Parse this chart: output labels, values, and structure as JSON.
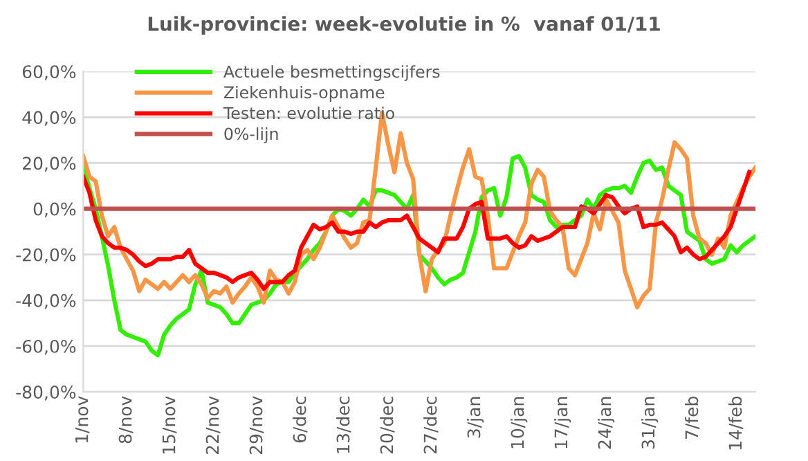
{
  "chart_data": {
    "type": "line",
    "title": "Luik-provincie: week-evolutie in %  vanaf 01/11",
    "categories": [
      "1/nov",
      null,
      null,
      null,
      null,
      null,
      null,
      "8/nov",
      null,
      null,
      null,
      null,
      null,
      null,
      "15/nov",
      null,
      null,
      null,
      null,
      null,
      null,
      "22/nov",
      null,
      null,
      null,
      null,
      null,
      null,
      "29/nov",
      null,
      null,
      null,
      null,
      null,
      null,
      "6/dec",
      null,
      null,
      null,
      null,
      null,
      null,
      "13/dec",
      null,
      null,
      null,
      null,
      null,
      null,
      "20/dec",
      null,
      null,
      null,
      null,
      null,
      null,
      "27/dec",
      null,
      null,
      null,
      null,
      null,
      null,
      "3/jan",
      null,
      null,
      null,
      null,
      null,
      null,
      "10/jan",
      null,
      null,
      null,
      null,
      null,
      null,
      "17/jan",
      null,
      null,
      null,
      null,
      null,
      null,
      "24/jan",
      null,
      null,
      null,
      null,
      null,
      null,
      "31/jan",
      null,
      null,
      null,
      null,
      null,
      null,
      "7/feb",
      null,
      null,
      null,
      null,
      null,
      null,
      "14/feb",
      null,
      null,
      null
    ],
    "ylim": [
      -80,
      60
    ],
    "yticks": [
      {
        "value": -80,
        "label": "-80,0%"
      },
      {
        "value": -60,
        "label": "-60,0%"
      },
      {
        "value": -40,
        "label": "-40,0%"
      },
      {
        "value": -20,
        "label": "-20,0%"
      },
      {
        "value": 0,
        "label": "0,0%"
      },
      {
        "value": 20,
        "label": "20,0%"
      },
      {
        "value": 40,
        "label": "40,0%"
      },
      {
        "value": 60,
        "label": "60,0%"
      }
    ],
    "grid": "y",
    "legend": "top left",
    "line_style": "solid",
    "marker": "none",
    "series": [
      {
        "name": "Actuele besmettingscijfers",
        "color": "#33ee00",
        "values": [
          19,
          9,
          0,
          -12,
          -25,
          -40,
          -53,
          -55,
          -56,
          -57,
          -58,
          -62,
          -64,
          -55,
          -51,
          -48,
          -46,
          -44,
          -33,
          -27,
          -41,
          -42,
          -43,
          -46,
          -50,
          -50,
          -46,
          -42,
          -41,
          -40,
          -37,
          -33,
          -32,
          -32,
          -28,
          -25,
          -22,
          -18,
          -15,
          -10,
          -3,
          0,
          -1,
          -3,
          0,
          4,
          1,
          8,
          8,
          7,
          6,
          3,
          0,
          6,
          -20,
          -23,
          -26,
          -30,
          -33,
          -31,
          -30,
          -28,
          -19,
          -10,
          5,
          8,
          9,
          -3,
          5,
          22,
          23,
          18,
          6,
          4,
          3,
          -5,
          -8,
          -7,
          -7,
          -5,
          -3,
          4,
          0,
          6,
          8,
          9,
          9,
          10,
          7,
          14,
          20,
          21,
          17,
          18,
          10,
          8,
          6,
          -10,
          -12,
          -14,
          -22,
          -24,
          -23,
          -22,
          -16,
          -19,
          -16,
          -14,
          -12
        ]
      },
      {
        "name": "Ziekenhuis-opname",
        "color": "#f79646",
        "values": [
          23,
          14,
          12,
          -3,
          -12,
          -8,
          -17,
          -22,
          -27,
          -36,
          -31,
          -33,
          -35,
          -32,
          -35,
          -32,
          -29,
          -32,
          -29,
          -33,
          -39,
          -36,
          -37,
          -34,
          -41,
          -37,
          -34,
          -30,
          -34,
          -41,
          -27,
          -31,
          -32,
          -37,
          -32,
          -20,
          -18,
          -22,
          -17,
          -10,
          -3,
          -8,
          -13,
          -17,
          -15,
          -6,
          -5,
          18,
          42,
          28,
          16,
          33,
          20,
          13,
          -20,
          -36,
          -22,
          -18,
          -15,
          -3,
          8,
          18,
          26,
          14,
          13,
          -3,
          -26,
          -26,
          -26,
          -19,
          -12,
          -6,
          11,
          17,
          14,
          -1,
          -5,
          -8,
          -26,
          -29,
          -22,
          -15,
          -2,
          -9,
          4,
          -1,
          -6,
          -27,
          -35,
          -43,
          -38,
          -35,
          -6,
          4,
          17,
          29,
          26,
          22,
          -3,
          -13,
          -15,
          -20,
          -13,
          -17,
          -3,
          3,
          9,
          14,
          18
        ]
      },
      {
        "name": "Testen: evolutie ratio",
        "color": "#ff0000",
        "values": [
          14,
          7,
          -5,
          -12,
          -15,
          -17,
          -17,
          -18,
          -20,
          -23,
          -25,
          -24,
          -22,
          -22,
          -22,
          -21,
          -21,
          -18,
          -24,
          -26,
          -28,
          -28,
          -29,
          -30,
          -32,
          -30,
          -29,
          -28,
          -31,
          -35,
          -32,
          -32,
          -32,
          -29,
          -27,
          -17,
          -12,
          -7,
          -9,
          -8,
          -6,
          -10,
          -10,
          -11,
          -10,
          -10,
          -6,
          -8,
          -6,
          -5,
          -5,
          -5,
          -3,
          -8,
          -13,
          -15,
          -17,
          -19,
          -13,
          -13,
          -13,
          -8,
          0,
          2,
          3,
          -13,
          -13,
          -13,
          -12,
          -15,
          -17,
          -16,
          -12,
          -14,
          -13,
          -12,
          -10,
          -8,
          -8,
          -8,
          1,
          0,
          -2,
          2,
          6,
          5,
          1,
          -2,
          0,
          1,
          -8,
          -7,
          -7,
          -6,
          -9,
          -12,
          -19,
          -17,
          -20,
          -22,
          -21,
          -18,
          -15,
          -12,
          -8,
          0,
          8,
          16,
          null
        ]
      },
      {
        "name": "0%-lijn",
        "color": "#c0504d",
        "values": [
          0,
          0,
          0,
          0,
          0,
          0,
          0,
          0,
          0,
          0,
          0,
          0,
          0,
          0,
          0,
          0,
          0,
          0,
          0,
          0,
          0,
          0,
          0,
          0,
          0,
          0,
          0,
          0,
          0,
          0,
          0,
          0,
          0,
          0,
          0,
          0,
          0,
          0,
          0,
          0,
          0,
          0,
          0,
          0,
          0,
          0,
          0,
          0,
          0,
          0,
          0,
          0,
          0,
          0,
          0,
          0,
          0,
          0,
          0,
          0,
          0,
          0,
          0,
          0,
          0,
          0,
          0,
          0,
          0,
          0,
          0,
          0,
          0,
          0,
          0,
          0,
          0,
          0,
          0,
          0,
          0,
          0,
          0,
          0,
          0,
          0,
          0,
          0,
          0,
          0,
          0,
          0,
          0,
          0,
          0,
          0,
          0,
          0,
          0,
          0,
          0,
          0,
          0,
          0,
          0,
          0,
          0,
          0,
          0
        ]
      }
    ]
  }
}
